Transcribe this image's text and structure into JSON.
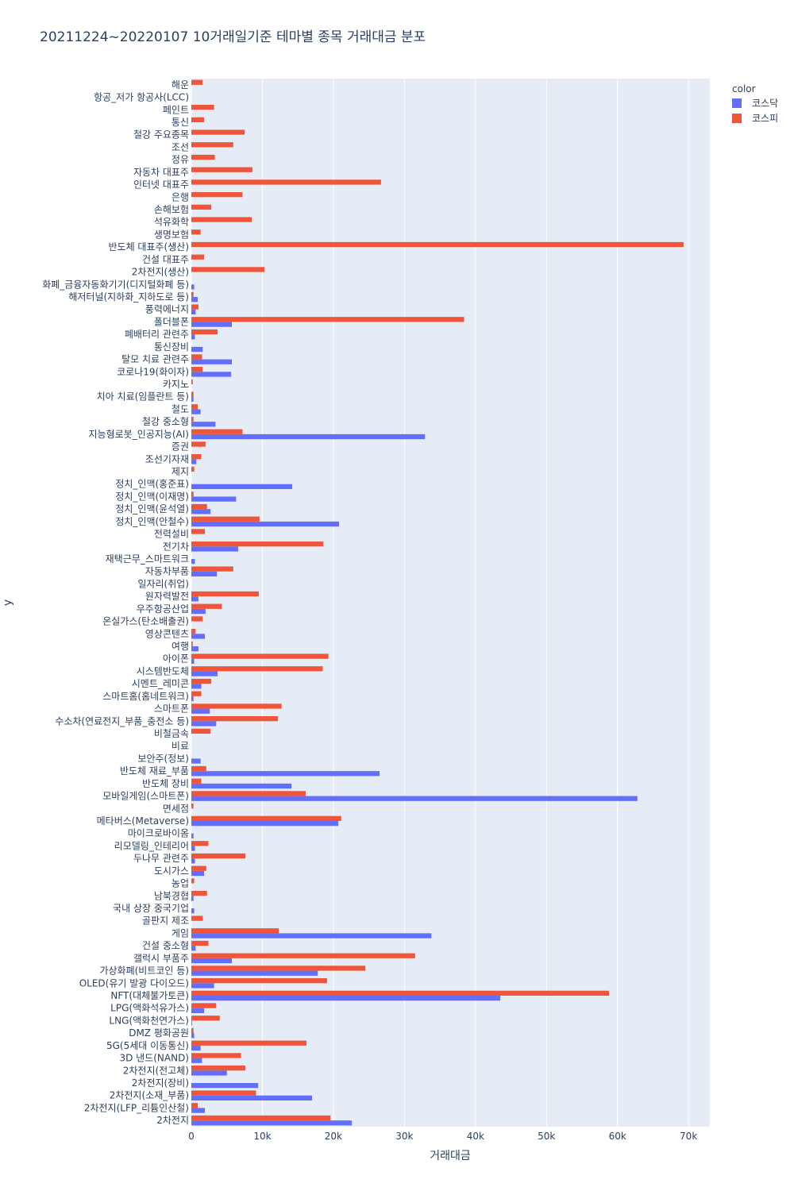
{
  "chart_data": {
    "type": "bar",
    "orientation": "horizontal",
    "barmode": "group",
    "title": "20211224~20220107 10거래일기준 테마별 종목 거래대금 분포",
    "xlabel": "거래대금",
    "ylabel": "y",
    "xlim": [
      0,
      73000
    ],
    "xticks": [
      {
        "value": 0,
        "label": "0"
      },
      {
        "value": 10000,
        "label": "10k"
      },
      {
        "value": 20000,
        "label": "20k"
      },
      {
        "value": 30000,
        "label": "30k"
      },
      {
        "value": 40000,
        "label": "40k"
      },
      {
        "value": 50000,
        "label": "50k"
      },
      {
        "value": 60000,
        "label": "60k"
      },
      {
        "value": 70000,
        "label": "70k"
      }
    ],
    "grid": true,
    "legend": {
      "title": "color",
      "position": "top-right"
    },
    "categories": [
      "2차전지",
      "2차전지(LFP_리튬인산철)",
      "2차전지(소재_부품)",
      "2차전지(장비)",
      "2차전지(전고체)",
      "3D 낸드(NAND)",
      "5G(5세대 이동통신)",
      "DMZ 평화공원",
      "LNG(액화천연가스)",
      "LPG(액화석유가스)",
      "NFT(대체불가토큰)",
      "OLED(유기 발광 다이오드)",
      "가상화폐(비트코인 등)",
      "갤럭시 부품주",
      "건설 중소형",
      "게임",
      "골판지 제조",
      "국내 상장 중국기업",
      "남북경협",
      "농업",
      "도시가스",
      "두나무 관련주",
      "리모델링_인테리어",
      "마이크로바이옴",
      "메타버스(Metaverse)",
      "면세점",
      "모바일게임(스마트폰)",
      "반도체 장비",
      "반도체 재료_부품",
      "보안주(정보)",
      "비료",
      "비철금속",
      "수소차(연료전지_부품_충전소 등)",
      "스마트폰",
      "스마트홈(홈네트워크)",
      "시멘트_레미콘",
      "시스템반도체",
      "아이폰",
      "여행",
      "영상콘텐츠",
      "온실가스(탄소배출권)",
      "우주항공산업",
      "원자력발전",
      "일자리(취업)",
      "자동차부품",
      "재택근무_스마트워크",
      "전기차",
      "전력설비",
      "정치_인맥(안철수)",
      "정치_인맥(윤석열)",
      "정치_인맥(이재명)",
      "정치_인맥(홍준표)",
      "제지",
      "조선기자재",
      "증권",
      "지능형로봇_인공지능(AI)",
      "철강 중소형",
      "철도",
      "치아 치료(임플란트 등)",
      "카지노",
      "코로나19(화이자)",
      "탈모 치료 관련주",
      "통신장비",
      "폐배터리 관련주",
      "폴더블폰",
      "풍력에너지",
      "해저터널(지하화_지하도로 등)",
      "화폐_금융자동화기기(디지털화폐 등)",
      "2차전지(생산)",
      "건설 대표주",
      "반도체 대표주(생산)",
      "생명보험",
      "석유화학",
      "손해보험",
      "은행",
      "인터넷 대표주",
      "자동차 대표주",
      "정유",
      "조선",
      "철강 주요종목",
      "통신",
      "페인트",
      "항공_저가 항공사(LCC)",
      "해운"
    ],
    "series": [
      {
        "name": "코스닥",
        "color": "#636efa",
        "values": [
          22600,
          1900,
          17000,
          9400,
          5000,
          1500,
          1300,
          400,
          100,
          1800,
          43500,
          3200,
          17800,
          5700,
          600,
          33800,
          0,
          400,
          300,
          0,
          1800,
          500,
          500,
          300,
          20700,
          0,
          62800,
          14100,
          26500,
          1300,
          0,
          0,
          3500,
          2600,
          300,
          1400,
          3700,
          400,
          1000,
          1900,
          0,
          2000,
          1000,
          0,
          3600,
          500,
          6600,
          0,
          20800,
          2700,
          6300,
          14200,
          0,
          700,
          0,
          32900,
          3400,
          1300,
          300,
          0,
          5600,
          5700,
          1600,
          500,
          5700,
          600,
          900,
          400,
          0,
          0,
          0,
          0,
          0,
          0,
          0,
          0,
          0,
          0,
          0,
          0,
          0,
          0,
          0,
          0
        ]
      },
      {
        "name": "코스피",
        "color": "#ef553b",
        "values": [
          19600,
          900,
          9100,
          0,
          7600,
          7000,
          16200,
          300,
          4000,
          3500,
          58800,
          19100,
          24500,
          31500,
          2400,
          12300,
          1600,
          0,
          2200,
          400,
          2100,
          7600,
          2400,
          0,
          21100,
          300,
          16100,
          1400,
          2100,
          0,
          0,
          2700,
          12200,
          12700,
          1400,
          2800,
          18500,
          19300,
          200,
          600,
          1600,
          4300,
          9500,
          0,
          5900,
          0,
          18600,
          1900,
          9600,
          2200,
          300,
          0,
          400,
          1400,
          2000,
          7200,
          300,
          900,
          300,
          200,
          1600,
          1500,
          0,
          3700,
          38400,
          1000,
          300,
          0,
          10300,
          1800,
          69300,
          1300,
          8500,
          2800,
          7200,
          26700,
          8600,
          3300,
          5900,
          7500,
          1800,
          3200,
          0,
          1600
        ]
      }
    ]
  }
}
